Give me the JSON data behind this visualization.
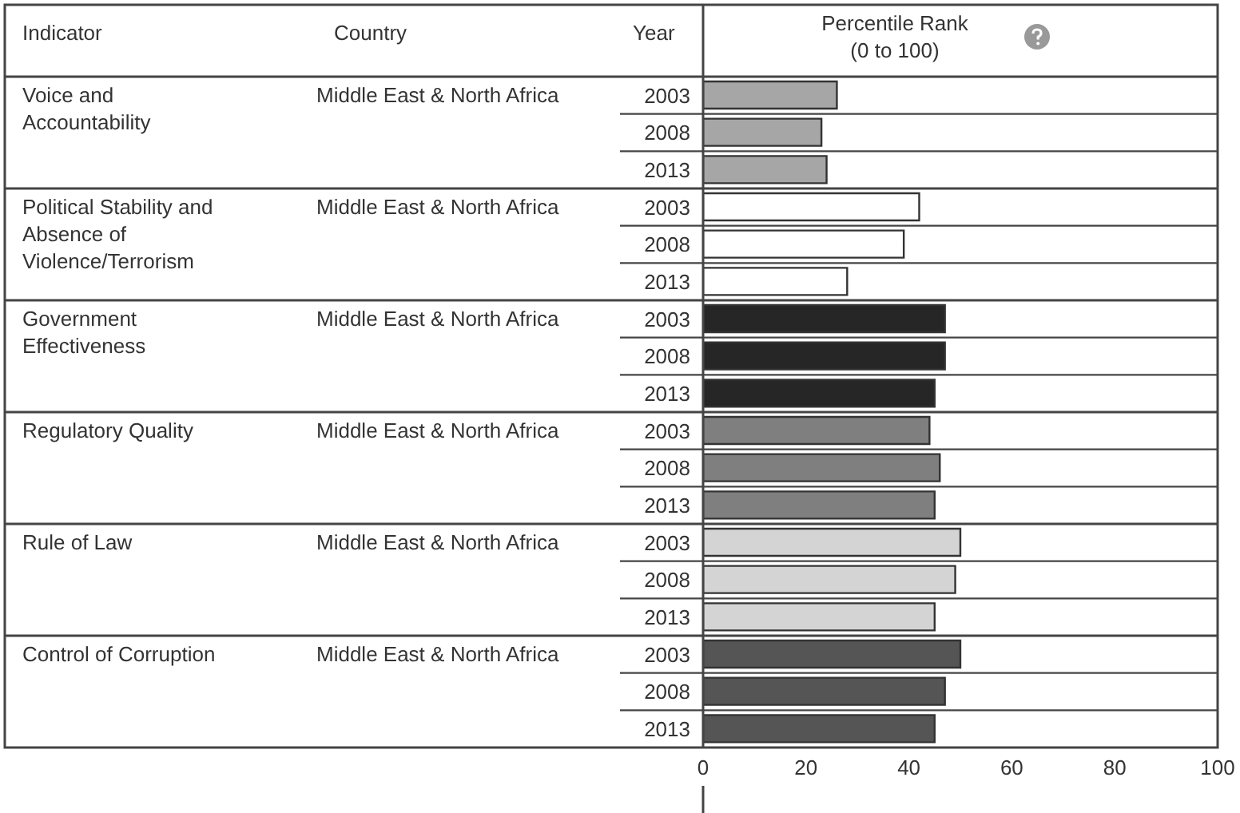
{
  "chart_data": {
    "type": "bar",
    "orientation": "horizontal",
    "xlabel": "Percentile Rank (0 to 100)",
    "categories": [
      "2003",
      "2008",
      "2013",
      "2003",
      "2008",
      "2013",
      "2003",
      "2008",
      "2013",
      "2003",
      "2008",
      "2013",
      "2003",
      "2008",
      "2013",
      "2003",
      "2008",
      "2013"
    ],
    "values": [
      26,
      23,
      24,
      42,
      39,
      28,
      47,
      47,
      45,
      44,
      46,
      45,
      50,
      49,
      45,
      50,
      47,
      45
    ],
    "colors": [
      "#a6a6a6",
      "#a6a6a6",
      "#a6a6a6",
      "#ffffff",
      "#ffffff",
      "#ffffff",
      "#262626",
      "#262626",
      "#262626",
      "#7f7f7f",
      "#7f7f7f",
      "#7f7f7f",
      "#d4d4d4",
      "#d4d4d4",
      "#d4d4d4",
      "#555555",
      "#555555",
      "#555555"
    ],
    "xlim": [
      0,
      100
    ],
    "xticks": [
      0,
      20,
      40,
      60,
      80,
      100
    ],
    "annotations": [
      "Indicator",
      "Country",
      "Year",
      "Voice and Accountability",
      "Middle East & North Africa",
      "Political Stability and Absence of Violence/Terrorism",
      "Middle East & North Africa",
      "Government Effectiveness",
      "Middle East & North Africa",
      "Regulatory Quality",
      "Middle East & North Africa",
      "Rule of Law",
      "Middle East & North Africa",
      "Control of Corruption",
      "Middle East & North Africa"
    ]
  }
}
